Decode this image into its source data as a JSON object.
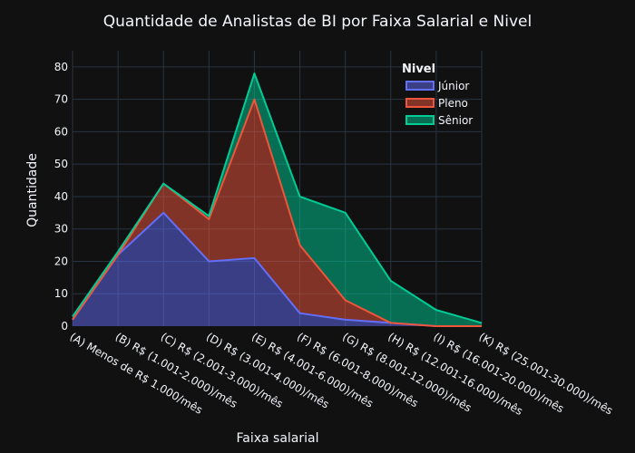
{
  "chart_data": {
    "type": "area",
    "title": "Quantidade de Analistas de BI por Faixa Salarial e Nivel",
    "xlabel": "Faixa salarial",
    "ylabel": "Quantidade",
    "categories": [
      "(A) Menos de R$ 1.000/mês",
      "(B) R$ (1.001-2.000)/mês",
      "(C) R$ (2.001-3.000)/mês",
      "(D) R$ (3.001-4.000)/mês",
      "(E) R$ (4.001-6.000)/mês",
      "(F) R$ (6.001-8.000)/mês",
      "(G) R$ (8.001-12.000)/mês",
      "(H) R$ (12.001-16.000)/mês",
      "(I) R$ (16.001-20.000)/mês",
      "(K) R$ (25.001-30.000)/mês"
    ],
    "ylim": [
      0,
      85
    ],
    "yticks": [
      0,
      10,
      20,
      30,
      40,
      50,
      60,
      70,
      80
    ],
    "stacked": true,
    "grid": true,
    "legend": {
      "title": "Nivel",
      "position": "top-right"
    },
    "series": [
      {
        "name": "Júnior",
        "color": "#636efa",
        "fill": "rgba(99,110,250,0.5)",
        "values": [
          2,
          22,
          35,
          20,
          21,
          4,
          2,
          1,
          0,
          0
        ]
      },
      {
        "name": "Pleno",
        "color": "#ef553b",
        "fill": "rgba(239,85,59,0.5)",
        "values": [
          0,
          0,
          9,
          13,
          49,
          21,
          6,
          0,
          0,
          0
        ]
      },
      {
        "name": "Sênior",
        "color": "#00cc96",
        "fill": "rgba(0,204,150,0.5)",
        "values": [
          1,
          1,
          0,
          1,
          8,
          15,
          27,
          13,
          5,
          1
        ]
      }
    ]
  }
}
